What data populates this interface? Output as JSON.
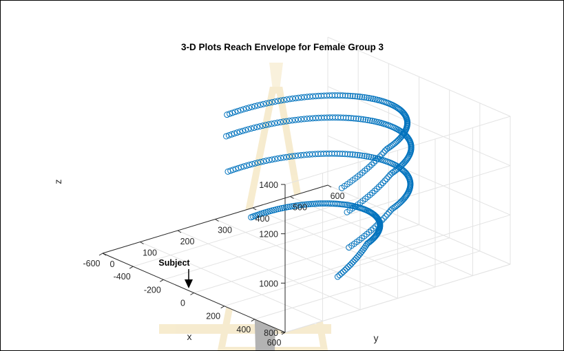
{
  "chart_data": {
    "type": "scatter",
    "title": "3-D Plots Reach Envelope for Female Group 3",
    "xlabel": "x",
    "ylabel": "y",
    "zlabel": "z",
    "xlim": [
      -600,
      600
    ],
    "ylim": [
      0,
      600
    ],
    "zlim": [
      800,
      1400
    ],
    "x_ticks": [
      "600",
      "400",
      "200",
      "0",
      "-200",
      "-400",
      "-600"
    ],
    "y_ticks": [
      "0",
      "100",
      "200",
      "300",
      "400",
      "500",
      "600"
    ],
    "z_ticks": [
      "800",
      "1000",
      "1200",
      "1400"
    ],
    "grid": true,
    "marker": "open-circle",
    "marker_color": "#0072BD",
    "annotation": "Subject",
    "series": [
      {
        "z": 1300,
        "x": [
          -400,
          400
        ],
        "y": [
          200,
          540
        ]
      },
      {
        "z": 1200,
        "x": [
          -430,
          410
        ],
        "y": [
          210,
          550
        ]
      },
      {
        "z": 1050,
        "x": [
          -440,
          400
        ],
        "y": [
          220,
          550
        ]
      },
      {
        "z": 900,
        "x": [
          -300,
          300
        ],
        "y": [
          240,
          470
        ]
      }
    ]
  }
}
